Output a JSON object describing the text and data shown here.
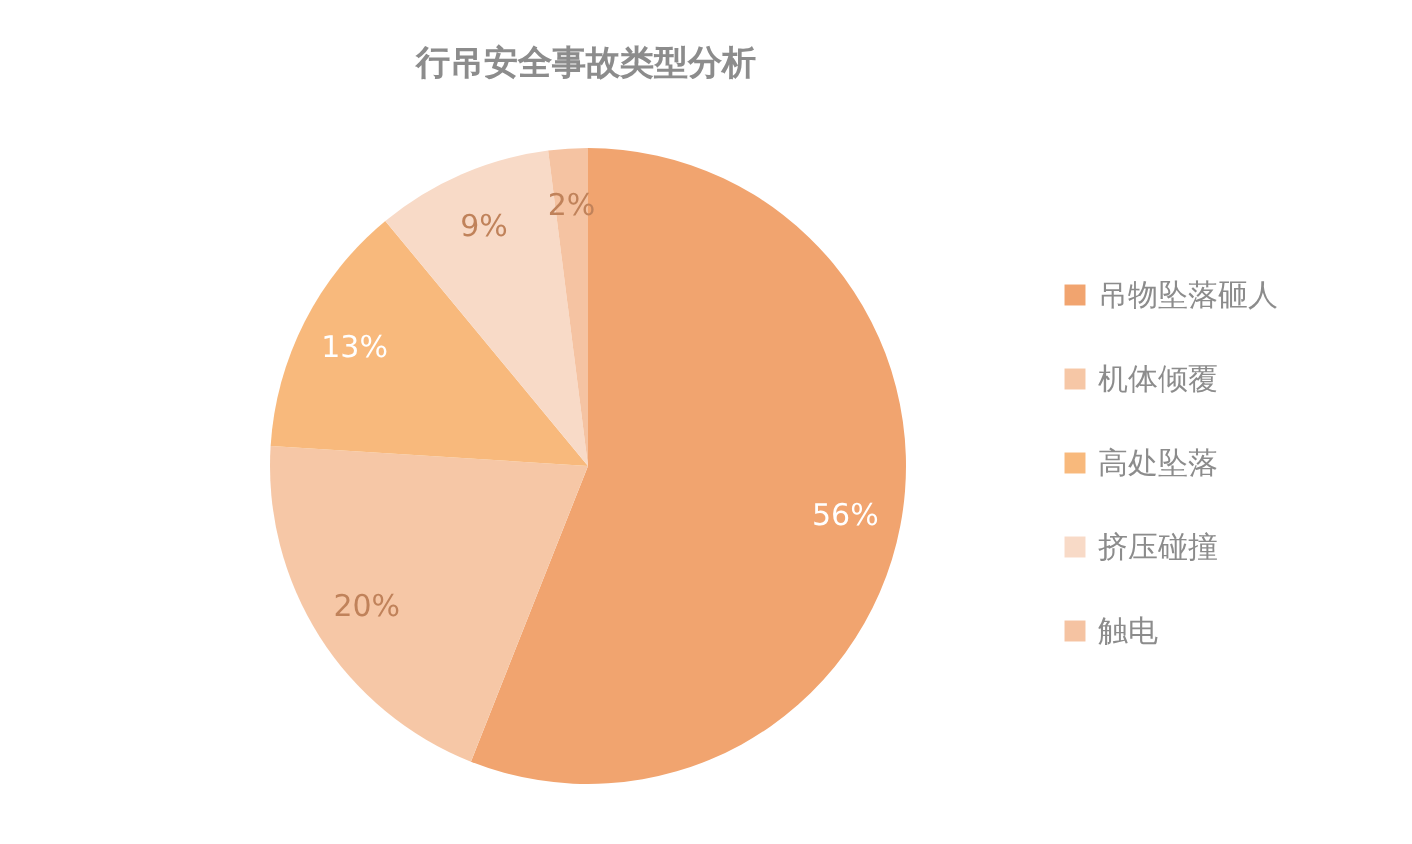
{
  "chart_data": {
    "type": "pie",
    "title": "行吊安全事故类型分析",
    "categories": [
      "吊物坠落砸人",
      "机体倾覆",
      "高处坠落",
      "挤压碰撞",
      "触电"
    ],
    "values": [
      56,
      20,
      13,
      9,
      2
    ],
    "colors": [
      "#f1a46f",
      "#f6c7a6",
      "#f8b97c",
      "#f8dac7",
      "#f5c3a2"
    ],
    "value_labels": [
      "56%",
      "20%",
      "13%",
      "9%",
      "2%"
    ],
    "legend": "right"
  }
}
